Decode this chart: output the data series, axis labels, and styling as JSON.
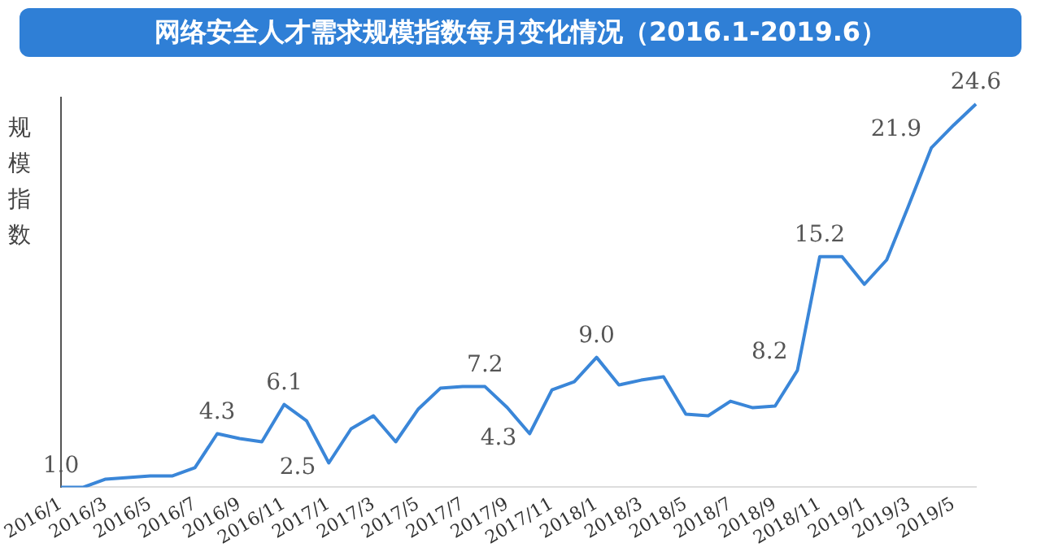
{
  "chart_data": {
    "type": "line",
    "title": "网络安全人才需求规模指数每月变化情况（2016.1-2019.6）",
    "ylabel": "规模指数",
    "categories": [
      "2016/1",
      null,
      "2016/3",
      null,
      "2016/5",
      null,
      "2016/7",
      null,
      "2016/9",
      null,
      "2016/11",
      null,
      "2017/1",
      null,
      "2017/3",
      null,
      "2017/5",
      null,
      "2017/7",
      null,
      "2017/9",
      null,
      "2017/11",
      null,
      "2018/1",
      null,
      "2018/3",
      null,
      "2018/5",
      null,
      "2018/7",
      null,
      "2018/9",
      null,
      "2018/11",
      null,
      "2019/1",
      null,
      "2019/3",
      null,
      "2019/5",
      null
    ],
    "series": [
      {
        "color": "#3a86d8",
        "values": [
          1.0,
          1.0,
          1.5,
          1.6,
          1.7,
          1.7,
          2.2,
          4.3,
          4.0,
          3.8,
          6.1,
          5.1,
          2.5,
          4.6,
          5.4,
          3.8,
          5.8,
          7.1,
          7.2,
          7.2,
          5.9,
          4.3,
          7.0,
          7.5,
          9.0,
          7.3,
          7.6,
          7.8,
          5.5,
          5.4,
          6.3,
          5.9,
          6.0,
          8.2,
          15.2,
          15.2,
          13.5,
          15.0,
          18.4,
          21.9,
          23.3,
          24.6
        ],
        "value_labels": [
          "1.0",
          null,
          null,
          null,
          null,
          null,
          null,
          "4.3",
          null,
          null,
          "6.1",
          null,
          "2.5",
          null,
          null,
          null,
          null,
          null,
          null,
          "7.2",
          null,
          "4.3",
          null,
          null,
          "9.0",
          null,
          null,
          null,
          null,
          null,
          null,
          null,
          null,
          "8.2",
          "15.2",
          null,
          null,
          null,
          null,
          "21.9",
          null,
          "24.6"
        ]
      }
    ],
    "ylim": [
      1,
      25
    ],
    "tick_labels": "x",
    "grid": false,
    "legend": false,
    "marker": "none",
    "line_style": "solid"
  }
}
